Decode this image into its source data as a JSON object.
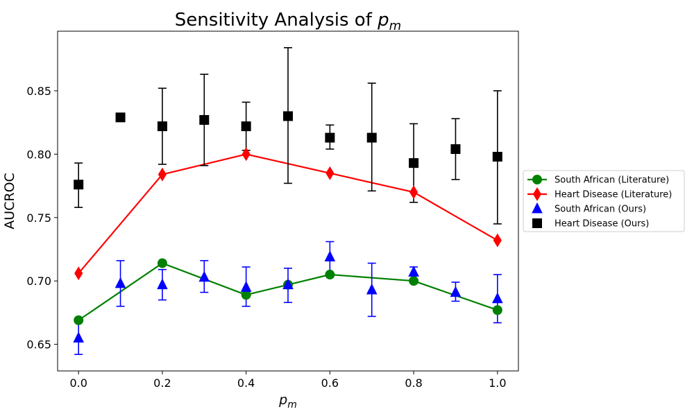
{
  "chart_data": {
    "type": "line",
    "title": "Sensitivity Analysis of p_m",
    "title_prefix": "Sensitivity Analysis of ",
    "title_var": "p",
    "title_sub": "m",
    "xlabel_var": "p",
    "xlabel_sub": "m",
    "ylabel": "AUCROC",
    "xlim": [
      -0.05,
      1.05
    ],
    "ylim": [
      0.629,
      0.897
    ],
    "xticks": [
      0.0,
      0.2,
      0.4,
      0.6,
      0.8,
      1.0
    ],
    "xtick_labels": [
      "0.0",
      "0.2",
      "0.4",
      "0.6",
      "0.8",
      "1.0"
    ],
    "yticks": [
      0.65,
      0.7,
      0.75,
      0.8,
      0.85
    ],
    "ytick_labels": [
      "0.65",
      "0.70",
      "0.75",
      "0.80",
      "0.85"
    ],
    "legend_position": "outside-right",
    "series": [
      {
        "name": "South African (Literature)",
        "color": "#008000",
        "marker": "circle",
        "line": true,
        "points": [
          {
            "x": 0.0,
            "y": 0.669
          },
          {
            "x": 0.2,
            "y": 0.714
          },
          {
            "x": 0.4,
            "y": 0.689
          },
          {
            "x": 0.5,
            "y": 0.697
          },
          {
            "x": 0.6,
            "y": 0.705
          },
          {
            "x": 0.8,
            "y": 0.7
          },
          {
            "x": 1.0,
            "y": 0.677
          }
        ]
      },
      {
        "name": "Heart Disease (Literature)",
        "color": "#ff0000",
        "marker": "diamond",
        "line": true,
        "points": [
          {
            "x": 0.0,
            "y": 0.706
          },
          {
            "x": 0.2,
            "y": 0.784
          },
          {
            "x": 0.4,
            "y": 0.8
          },
          {
            "x": 0.6,
            "y": 0.785
          },
          {
            "x": 0.8,
            "y": 0.77
          },
          {
            "x": 1.0,
            "y": 0.732
          }
        ]
      },
      {
        "name": "South African (Ours)",
        "color": "#0000ff",
        "marker": "triangle",
        "line": false,
        "points": [
          {
            "x": 0.0,
            "y": 0.655,
            "lo": 0.642,
            "hi": 0.669
          },
          {
            "x": 0.1,
            "y": 0.698,
            "lo": 0.68,
            "hi": 0.716
          },
          {
            "x": 0.2,
            "y": 0.697,
            "lo": 0.685,
            "hi": 0.709
          },
          {
            "x": 0.3,
            "y": 0.703,
            "lo": 0.691,
            "hi": 0.716
          },
          {
            "x": 0.4,
            "y": 0.695,
            "lo": 0.68,
            "hi": 0.711
          },
          {
            "x": 0.5,
            "y": 0.697,
            "lo": 0.683,
            "hi": 0.71
          },
          {
            "x": 0.6,
            "y": 0.719,
            "lo": 0.706,
            "hi": 0.731
          },
          {
            "x": 0.7,
            "y": 0.693,
            "lo": 0.672,
            "hi": 0.714
          },
          {
            "x": 0.8,
            "y": 0.707,
            "lo": 0.704,
            "hi": 0.711
          },
          {
            "x": 0.9,
            "y": 0.691,
            "lo": 0.684,
            "hi": 0.699
          },
          {
            "x": 1.0,
            "y": 0.686,
            "lo": 0.667,
            "hi": 0.705
          }
        ]
      },
      {
        "name": "Heart Disease (Ours)",
        "color": "#000000",
        "marker": "square",
        "line": false,
        "points": [
          {
            "x": 0.0,
            "y": 0.776,
            "lo": 0.758,
            "hi": 0.793
          },
          {
            "x": 0.1,
            "y": 0.829,
            "lo": 0.827,
            "hi": 0.83
          },
          {
            "x": 0.2,
            "y": 0.822,
            "lo": 0.792,
            "hi": 0.852
          },
          {
            "x": 0.3,
            "y": 0.827,
            "lo": 0.791,
            "hi": 0.863
          },
          {
            "x": 0.4,
            "y": 0.822,
            "lo": 0.803,
            "hi": 0.841
          },
          {
            "x": 0.5,
            "y": 0.83,
            "lo": 0.777,
            "hi": 0.884
          },
          {
            "x": 0.6,
            "y": 0.813,
            "lo": 0.804,
            "hi": 0.823
          },
          {
            "x": 0.7,
            "y": 0.813,
            "lo": 0.771,
            "hi": 0.856
          },
          {
            "x": 0.8,
            "y": 0.793,
            "lo": 0.762,
            "hi": 0.824
          },
          {
            "x": 0.9,
            "y": 0.804,
            "lo": 0.78,
            "hi": 0.828
          },
          {
            "x": 1.0,
            "y": 0.798,
            "lo": 0.745,
            "hi": 0.85
          }
        ]
      }
    ]
  }
}
